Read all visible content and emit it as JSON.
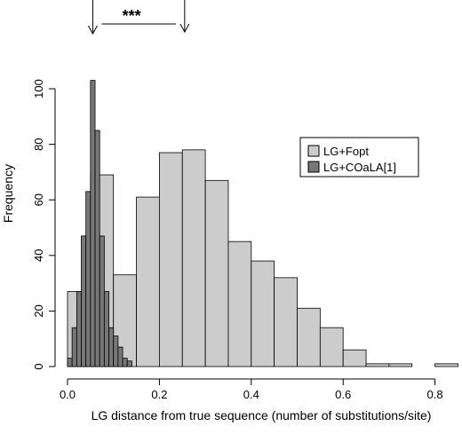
{
  "chart_data": {
    "type": "histogram",
    "xlabel": "LG distance from true sequence (number of substitutions/site)",
    "ylabel": "Frequency",
    "xlim": [
      0,
      0.85
    ],
    "ylim": [
      0,
      105
    ],
    "x_ticks": [
      0.0,
      0.2,
      0.4,
      0.6,
      0.8
    ],
    "x_tick_labels": [
      "0.0",
      "0.2",
      "0.4",
      "0.6",
      "0.8"
    ],
    "y_ticks": [
      0,
      20,
      40,
      60,
      80,
      100
    ],
    "y_tick_labels": [
      "0",
      "20",
      "40",
      "60",
      "80",
      "100"
    ],
    "legend_position": "right",
    "series": [
      {
        "name": "LG+Fopt",
        "color": "#cccccc",
        "bin_width": 0.05,
        "bins": [
          {
            "x0": 0.0,
            "value": 27
          },
          {
            "x0": 0.05,
            "value": 69
          },
          {
            "x0": 0.1,
            "value": 33
          },
          {
            "x0": 0.15,
            "value": 61
          },
          {
            "x0": 0.2,
            "value": 77
          },
          {
            "x0": 0.25,
            "value": 78
          },
          {
            "x0": 0.3,
            "value": 67
          },
          {
            "x0": 0.35,
            "value": 45
          },
          {
            "x0": 0.4,
            "value": 38
          },
          {
            "x0": 0.45,
            "value": 32
          },
          {
            "x0": 0.5,
            "value": 21
          },
          {
            "x0": 0.55,
            "value": 14
          },
          {
            "x0": 0.6,
            "value": 6
          },
          {
            "x0": 0.65,
            "value": 1
          },
          {
            "x0": 0.7,
            "value": 1
          },
          {
            "x0": 0.75,
            "value": 0
          },
          {
            "x0": 0.8,
            "value": 1
          }
        ]
      },
      {
        "name": "LG+COaLA[1]",
        "color": "#777777",
        "bin_width": 0.01,
        "bins": [
          {
            "x0": 0.0,
            "value": 3
          },
          {
            "x0": 0.01,
            "value": 14
          },
          {
            "x0": 0.02,
            "value": 27
          },
          {
            "x0": 0.03,
            "value": 47
          },
          {
            "x0": 0.04,
            "value": 63
          },
          {
            "x0": 0.05,
            "value": 103
          },
          {
            "x0": 0.06,
            "value": 85
          },
          {
            "x0": 0.07,
            "value": 47
          },
          {
            "x0": 0.08,
            "value": 27
          },
          {
            "x0": 0.09,
            "value": 14
          },
          {
            "x0": 0.1,
            "value": 11
          },
          {
            "x0": 0.11,
            "value": 7
          },
          {
            "x0": 0.12,
            "value": 3
          },
          {
            "x0": 0.13,
            "value": 2
          }
        ]
      }
    ],
    "annotation": {
      "text": "***",
      "arrow1_x": 0.055,
      "arrow2_x": 0.255
    }
  }
}
